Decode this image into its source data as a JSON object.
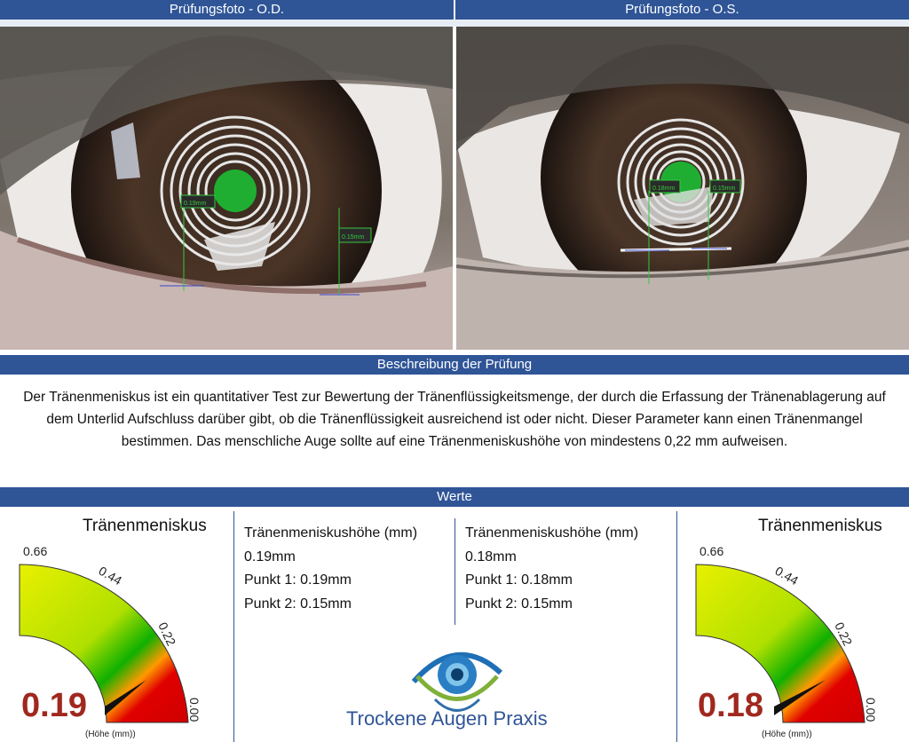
{
  "header": {
    "left_title": "Prüfungsfoto - O.D.",
    "right_title": "Prüfungsfoto - O.S."
  },
  "description": {
    "title": "Beschreibung der Prüfung",
    "text": "Der Tränenmeniskus ist ein quantitativer Test zur Bewertung der Tränenflüssigkeitsmenge, der durch die Erfassung der Tränenablagerung auf dem Unterlid Aufschluss darüber gibt, ob die Tränenflüssigkeit ausreichend ist oder nicht. Dieser Parameter kann einen Tränenmangel bestimmen. Das menschliche Auge sollte auf eine Tränenmeniskushöhe von mindestens 0,22 mm aufweisen."
  },
  "values": {
    "title": "Werte",
    "left": {
      "gauge_title": "Tränenmeniskus",
      "gauge_value": 0.19,
      "gauge_value_label": "0.19",
      "unit": "(Höhe (mm))",
      "ticks": [
        "0.66",
        "0.44",
        "0.22",
        "0.00"
      ],
      "height_label": "Tränenmeniskushöhe (mm)",
      "height_value": "0.19mm",
      "point1": "Punkt 1: 0.19mm",
      "point2": "Punkt 2: 0.15mm"
    },
    "right": {
      "gauge_title": "Tränenmeniskus",
      "gauge_value": 0.18,
      "gauge_value_label": "0.18",
      "unit": "(Höhe (mm))",
      "ticks": [
        "0.66",
        "0.44",
        "0.22",
        "0.00"
      ],
      "height_label": "Tränenmeniskushöhe (mm)",
      "height_value": "0.18mm",
      "point1": "Punkt 1: 0.18mm",
      "point2": "Punkt 2: 0.15mm"
    }
  },
  "photo_labels": {
    "od_p1": "0.19mm",
    "od_p2": "0.15mm",
    "os_p1": "0.18mm",
    "os_p2": "0.15mm"
  },
  "logo": {
    "text": "Trockene Augen Praxis"
  },
  "colors": {
    "header_blue": "#2f5597",
    "value_red": "#a0281e",
    "pupil_green": "#1fae32"
  }
}
